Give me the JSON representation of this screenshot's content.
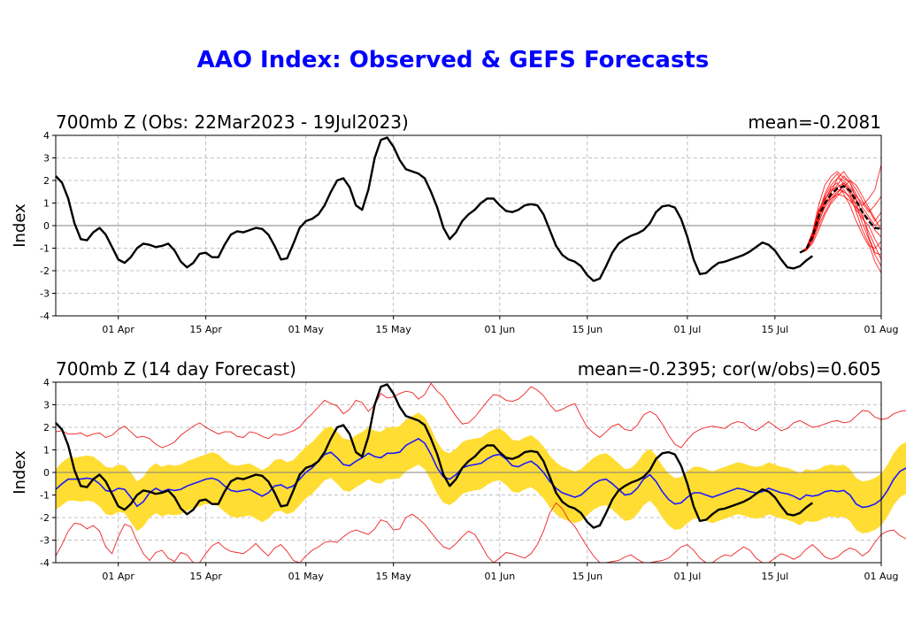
{
  "title": "AAO Index: Observed & GEFS Forecasts",
  "colors": {
    "title": "#0000ff",
    "observed": "#000000",
    "ensemble_members": "#ff0000",
    "ensemble_mean": "#000000",
    "spread_band": "#ffdd33",
    "forecast_mean": "#1a1aff",
    "extreme_bounds": "#ee2222",
    "grid": "#b0b0b0",
    "zero_line": "#808080"
  },
  "chart_data": [
    {
      "type": "line",
      "title": "700mb Z (Obs: 22Mar2023 - 19Jul2023)",
      "stat": "mean=-0.2081",
      "ylabel": "Index",
      "ylim": [
        -4,
        4
      ],
      "yticks": [
        "-4",
        "-3",
        "-2",
        "-1",
        "0",
        "1",
        "2",
        "3",
        "4"
      ],
      "xlim": [
        "2023-03-22",
        "2023-08-01"
      ],
      "xticks": [
        {
          "date": "2023-04-01",
          "label": "01 Apr"
        },
        {
          "date": "2023-04-15",
          "label": "15 Apr"
        },
        {
          "date": "2023-05-01",
          "label": "01 May"
        },
        {
          "date": "2023-05-15",
          "label": "15 May"
        },
        {
          "date": "2023-06-01",
          "label": "01 Jun"
        },
        {
          "date": "2023-06-15",
          "label": "15 Jun"
        },
        {
          "date": "2023-07-01",
          "label": "01 Jul"
        },
        {
          "date": "2023-07-15",
          "label": "15 Jul"
        },
        {
          "date": "2023-08-01",
          "label": "01 Aug"
        }
      ],
      "grid": true,
      "observed": {
        "start": "2023-03-22",
        "values": [
          2.2,
          1.9,
          1.2,
          0.1,
          -0.6,
          -0.65,
          -0.3,
          -0.1,
          -0.4,
          -0.95,
          -1.5,
          -1.65,
          -1.4,
          -1.0,
          -0.8,
          -0.85,
          -0.95,
          -0.9,
          -0.8,
          -1.1,
          -1.6,
          -1.85,
          -1.65,
          -1.25,
          -1.2,
          -1.4,
          -1.4,
          -0.85,
          -0.4,
          -0.25,
          -0.3,
          -0.2,
          -0.1,
          -0.15,
          -0.4,
          -0.9,
          -1.5,
          -1.45,
          -0.8,
          -0.1,
          0.2,
          0.3,
          0.5,
          0.9,
          1.5,
          2.0,
          2.1,
          1.7,
          0.9,
          0.7,
          1.6,
          3.0,
          3.8,
          3.9,
          3.5,
          2.9,
          2.5,
          2.4,
          2.3,
          2.1,
          1.5,
          0.8,
          -0.1,
          -0.6,
          -0.3,
          0.2,
          0.5,
          0.7,
          1.0,
          1.2,
          1.2,
          0.9,
          0.65,
          0.6,
          0.7,
          0.9,
          0.95,
          0.9,
          0.5,
          -0.2,
          -0.9,
          -1.3,
          -1.5,
          -1.6,
          -1.8,
          -2.2,
          -2.45,
          -2.35,
          -1.8,
          -1.2,
          -0.8,
          -0.6,
          -0.45,
          -0.35,
          -0.2,
          0.1,
          0.6,
          0.85,
          0.9,
          0.8,
          0.3,
          -0.5,
          -1.5,
          -2.15,
          -2.1,
          -1.85,
          -1.65,
          -1.6,
          -1.5,
          -1.4,
          -1.3,
          -1.15,
          -0.95,
          -0.75,
          -0.85,
          -1.1,
          -1.5,
          -1.85,
          -1.9,
          -1.8,
          -1.55,
          -1.35
        ]
      },
      "ensemble_mean": {
        "x": [
          "2023-07-19",
          "2023-07-20",
          "2023-07-21",
          "2023-07-22",
          "2023-07-23",
          "2023-07-24",
          "2023-07-25",
          "2023-07-26",
          "2023-07-27",
          "2023-07-28",
          "2023-07-29",
          "2023-07-30",
          "2023-07-31",
          "2023-08-01"
        ],
        "values": [
          -1.2,
          -1.05,
          -0.5,
          0.4,
          1.0,
          1.4,
          1.65,
          1.75,
          1.55,
          1.1,
          0.6,
          0.2,
          -0.1,
          -0.15
        ]
      },
      "ensemble_members": {
        "x": [
          "2023-07-19",
          "2023-07-20",
          "2023-07-21",
          "2023-07-22",
          "2023-07-23",
          "2023-07-24",
          "2023-07-25",
          "2023-07-26",
          "2023-07-27",
          "2023-07-28",
          "2023-07-29",
          "2023-07-30",
          "2023-07-31",
          "2023-08-01"
        ],
        "members": [
          [
            -1.2,
            -1.0,
            -0.3,
            0.9,
            1.8,
            2.2,
            2.4,
            2.1,
            1.9,
            1.2,
            0.5,
            -0.5,
            -1.2,
            -1.3
          ],
          [
            -1.2,
            -1.1,
            -0.7,
            0.0,
            0.6,
            1.1,
            1.4,
            1.9,
            1.6,
            1.1,
            0.9,
            1.2,
            1.6,
            2.7
          ],
          [
            -1.2,
            -1.0,
            -0.4,
            0.6,
            1.4,
            2.0,
            2.3,
            1.8,
            1.4,
            0.6,
            -0.2,
            -0.8,
            -1.6,
            -2.1
          ],
          [
            -1.2,
            -1.0,
            -0.6,
            0.2,
            0.8,
            1.2,
            1.5,
            1.7,
            2.0,
            1.8,
            1.3,
            0.8,
            0.3,
            -0.2
          ],
          [
            -1.2,
            -1.05,
            -0.5,
            0.3,
            1.1,
            1.7,
            1.9,
            1.4,
            0.9,
            0.2,
            -0.4,
            -0.9,
            -1.0,
            -0.7
          ],
          [
            -1.2,
            -1.0,
            -0.3,
            0.7,
            1.2,
            1.5,
            1.8,
            2.2,
            1.9,
            1.4,
            0.8,
            0.4,
            0.0,
            0.3
          ],
          [
            -1.2,
            -1.1,
            -0.8,
            -0.2,
            0.5,
            1.0,
            1.3,
            1.6,
            1.2,
            0.7,
            0.3,
            0.0,
            -0.6,
            -1.1
          ],
          [
            -1.2,
            -1.0,
            -0.4,
            0.5,
            1.3,
            1.8,
            2.1,
            2.0,
            1.7,
            1.3,
            1.0,
            0.6,
            0.9,
            1.3
          ],
          [
            -1.2,
            -1.0,
            -0.5,
            0.4,
            0.9,
            1.3,
            1.6,
            1.5,
            1.3,
            0.9,
            0.4,
            -0.3,
            -0.9,
            -1.5
          ],
          [
            -1.2,
            -1.05,
            -0.6,
            0.1,
            0.9,
            1.5,
            2.1,
            2.4,
            2.0,
            1.6,
            1.1,
            0.7,
            0.2,
            0.6
          ],
          [
            -1.2,
            -1.0,
            -0.4,
            0.6,
            1.0,
            1.2,
            1.4,
            1.3,
            1.1,
            0.8,
            0.6,
            0.3,
            -0.2,
            -0.5
          ],
          [
            -1.2,
            -1.1,
            -0.6,
            0.3,
            1.2,
            1.6,
            1.7,
            1.9,
            1.5,
            0.9,
            0.1,
            -0.6,
            -1.3,
            -1.8
          ]
        ]
      }
    },
    {
      "type": "line",
      "title": "700mb Z (14 day Forecast)",
      "stat": "mean=-0.2395; cor(w/obs)=0.605",
      "ylabel": "Index",
      "ylim": [
        -4,
        4
      ],
      "yticks": [
        "-4",
        "-3",
        "-2",
        "-1",
        "0",
        "1",
        "2",
        "3",
        "4"
      ],
      "xlim": [
        "2023-03-22",
        "2023-08-01"
      ],
      "xticks": [
        {
          "date": "2023-04-01",
          "label": "01 Apr"
        },
        {
          "date": "2023-04-15",
          "label": "15 Apr"
        },
        {
          "date": "2023-05-01",
          "label": "01 May"
        },
        {
          "date": "2023-05-15",
          "label": "15 May"
        },
        {
          "date": "2023-06-01",
          "label": "01 Jun"
        },
        {
          "date": "2023-06-15",
          "label": "15 Jun"
        },
        {
          "date": "2023-07-01",
          "label": "01 Jul"
        },
        {
          "date": "2023-07-15",
          "label": "15 Jul"
        },
        {
          "date": "2023-08-01",
          "label": "01 Aug"
        }
      ],
      "grid": true,
      "start": "2023-03-22",
      "forecast_mean": [
        -0.75,
        -0.5,
        -0.3,
        -0.3,
        -0.3,
        -0.25,
        -0.3,
        -0.5,
        -0.8,
        -0.85,
        -0.7,
        -0.75,
        -1.1,
        -1.5,
        -1.3,
        -0.9,
        -0.7,
        -0.85,
        -0.75,
        -0.8,
        -0.75,
        -0.6,
        -0.5,
        -0.4,
        -0.3,
        -0.25,
        -0.35,
        -0.6,
        -0.8,
        -0.85,
        -0.8,
        -0.75,
        -0.9,
        -1.05,
        -0.9,
        -0.6,
        -0.55,
        -0.7,
        -0.6,
        -0.3,
        0.0,
        0.2,
        0.5,
        0.8,
        0.9,
        0.65,
        0.35,
        0.3,
        0.5,
        0.65,
        0.85,
        0.7,
        0.65,
        0.85,
        0.85,
        0.9,
        1.2,
        1.35,
        1.5,
        1.3,
        0.8,
        0.2,
        -0.2,
        -0.3,
        -0.1,
        0.2,
        0.3,
        0.35,
        0.4,
        0.6,
        0.75,
        0.8,
        0.6,
        0.3,
        0.25,
        0.4,
        0.5,
        0.3,
        0.0,
        -0.4,
        -0.7,
        -0.9,
        -1.0,
        -1.1,
        -1.0,
        -0.75,
        -0.5,
        -0.35,
        -0.3,
        -0.5,
        -0.75,
        -1.0,
        -0.95,
        -0.7,
        -0.3,
        -0.1,
        -0.4,
        -0.85,
        -1.2,
        -1.4,
        -1.35,
        -1.1,
        -0.9,
        -0.9,
        -1.0,
        -1.1,
        -1.0,
        -0.9,
        -0.8,
        -0.7,
        -0.75,
        -0.85,
        -0.9,
        -0.85,
        -0.7,
        -0.8,
        -0.9,
        -0.95,
        -1.05,
        -1.2,
        -1.0,
        -1.05,
        -1.0,
        -0.85,
        -0.8,
        -0.85,
        -0.8,
        -1.0,
        -1.4,
        -1.55,
        -1.5,
        -1.4,
        -1.2,
        -0.8,
        -0.3,
        0.05,
        0.2,
        0.2,
        0.1,
        0.0
      ],
      "spread_half_width": [
        0.9,
        0.95,
        0.95,
        0.95,
        1.0,
        1.0,
        1.0,
        1.0,
        1.05,
        1.05,
        1.05,
        1.05,
        1.1,
        1.1,
        1.1,
        1.1,
        1.1,
        1.1,
        1.1,
        1.1,
        1.1,
        1.1,
        1.1,
        1.1,
        1.1,
        1.15,
        1.15,
        1.15,
        1.15,
        1.15,
        1.15,
        1.15,
        1.15,
        1.15,
        1.15,
        1.15,
        1.15,
        1.15,
        1.15,
        1.15,
        1.15,
        1.15,
        1.15,
        1.15,
        1.15,
        1.15,
        1.15,
        1.15,
        1.15,
        1.15,
        1.15,
        1.15,
        1.15,
        1.15,
        1.15,
        1.15,
        1.15,
        1.15,
        1.15,
        1.15,
        1.15,
        1.15,
        1.15,
        1.15,
        1.15,
        1.15,
        1.15,
        1.15,
        1.15,
        1.15,
        1.15,
        1.15,
        1.15,
        1.15,
        1.15,
        1.15,
        1.15,
        1.15,
        1.15,
        1.15,
        1.15,
        1.15,
        1.15,
        1.15,
        1.15,
        1.15,
        1.15,
        1.15,
        1.15,
        1.15,
        1.15,
        1.15,
        1.15,
        1.15,
        1.15,
        1.15,
        1.15,
        1.15,
        1.15,
        1.15,
        1.15,
        1.15,
        1.15,
        1.15,
        1.15,
        1.15,
        1.15,
        1.15,
        1.15,
        1.15,
        1.15,
        1.15,
        1.15,
        1.15,
        1.15,
        1.15,
        1.15,
        1.15,
        1.15,
        1.15,
        1.15,
        1.15,
        1.15,
        1.15,
        1.15,
        1.15,
        1.15,
        1.15,
        1.15,
        1.15,
        1.15,
        1.15,
        1.15,
        1.15,
        1.15,
        1.15,
        1.15,
        1.15,
        1.15,
        1.15,
        1.15
      ],
      "upper_bound": [
        1.8,
        1.85,
        1.7,
        1.7,
        1.75,
        1.6,
        1.7,
        1.75,
        1.55,
        1.65,
        1.9,
        2.05,
        1.8,
        1.55,
        1.6,
        1.5,
        1.25,
        1.1,
        1.2,
        1.35,
        1.65,
        1.85,
        2.05,
        2.2,
        2.0,
        1.85,
        1.7,
        1.8,
        1.8,
        1.6,
        1.55,
        1.8,
        1.75,
        1.6,
        1.5,
        1.7,
        1.65,
        1.75,
        1.85,
        2.0,
        2.35,
        2.6,
        2.9,
        3.2,
        3.05,
        2.95,
        2.6,
        2.8,
        3.2,
        3.1,
        2.7,
        3.0,
        3.5,
        3.3,
        3.35,
        3.5,
        3.6,
        3.55,
        3.25,
        3.45,
        3.95,
        3.6,
        3.35,
        2.9,
        2.5,
        2.15,
        2.2,
        2.45,
        2.8,
        3.15,
        3.45,
        3.4,
        3.2,
        3.15,
        3.25,
        3.5,
        3.8,
        3.65,
        3.4,
        3.0,
        2.7,
        2.8,
        2.95,
        3.05,
        2.5,
        2.0,
        1.75,
        1.55,
        1.8,
        2.05,
        2.15,
        1.9,
        1.85,
        2.1,
        2.55,
        2.7,
        2.55,
        2.15,
        1.65,
        1.25,
        1.1,
        1.45,
        1.75,
        1.9,
        2.0,
        2.05,
        2.0,
        1.95,
        2.15,
        2.25,
        2.2,
        1.95,
        1.85,
        2.05,
        2.25,
        2.05,
        1.85,
        1.95,
        2.2,
        2.3,
        2.15,
        2.0,
        2.05,
        2.15,
        2.25,
        2.3,
        2.2,
        2.25,
        2.5,
        2.75,
        2.7,
        2.45,
        2.35,
        2.4,
        2.6,
        2.7,
        2.75,
        2.65,
        2.45,
        2.4
      ],
      "lower_bound": [
        -3.7,
        -3.2,
        -2.6,
        -2.25,
        -2.3,
        -2.5,
        -2.35,
        -2.6,
        -3.3,
        -3.6,
        -2.85,
        -2.3,
        -2.4,
        -3.05,
        -3.6,
        -3.9,
        -3.55,
        -3.45,
        -3.8,
        -3.95,
        -3.55,
        -3.65,
        -4.0,
        -4.0,
        -3.6,
        -3.25,
        -3.1,
        -3.35,
        -3.5,
        -3.55,
        -3.6,
        -3.4,
        -3.15,
        -3.45,
        -3.7,
        -3.35,
        -3.2,
        -3.5,
        -3.9,
        -4.0,
        -3.7,
        -3.45,
        -3.3,
        -3.1,
        -3.05,
        -3.1,
        -2.85,
        -2.65,
        -2.55,
        -2.65,
        -2.75,
        -2.5,
        -2.1,
        -2.2,
        -2.55,
        -2.5,
        -2.0,
        -1.85,
        -2.05,
        -2.3,
        -2.65,
        -3.0,
        -3.3,
        -3.4,
        -3.15,
        -2.85,
        -2.6,
        -2.75,
        -3.2,
        -3.7,
        -4.0,
        -3.8,
        -3.55,
        -3.6,
        -3.7,
        -3.8,
        -3.6,
        -3.2,
        -2.6,
        -1.8,
        -1.35,
        -1.6,
        -2.1,
        -2.4,
        -2.85,
        -3.3,
        -3.7,
        -4.0,
        -4.0,
        -3.95,
        -3.9,
        -3.75,
        -3.65,
        -3.85,
        -4.0,
        -4.0,
        -3.95,
        -3.9,
        -3.8,
        -3.55,
        -3.3,
        -3.2,
        -3.45,
        -3.8,
        -4.0,
        -4.0,
        -3.8,
        -3.65,
        -3.7,
        -3.5,
        -3.3,
        -3.45,
        -3.8,
        -4.0,
        -4.0,
        -3.8,
        -3.6,
        -3.7,
        -3.85,
        -3.7,
        -3.4,
        -3.2,
        -3.45,
        -3.75,
        -3.85,
        -3.75,
        -3.5,
        -3.35,
        -3.45,
        -3.7,
        -3.5,
        -3.1,
        -2.75,
        -2.6,
        -2.55,
        -2.8,
        -2.95,
        -2.6,
        -2.3,
        -2.1
      ]
    }
  ]
}
